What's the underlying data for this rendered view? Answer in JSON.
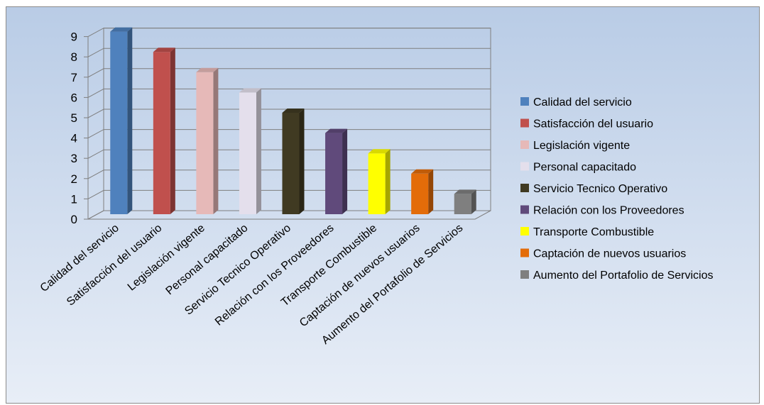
{
  "chart_data": {
    "type": "bar",
    "style": "3d-column",
    "title": "",
    "xlabel": "",
    "ylabel": "",
    "ylim": [
      0,
      9
    ],
    "yticks": [
      "0",
      "1",
      "2",
      "3",
      "4",
      "5",
      "6",
      "7",
      "8",
      "9"
    ],
    "grid": true,
    "legend_position": "right",
    "categories": [
      "Calidad del servicio",
      "Satisfacción del usuario",
      "Legislación vigente",
      "Personal capacitado",
      "Servicio Tecnico Operativo",
      "Relación con los Proveedores",
      "Transporte Combustible",
      "Captación de nuevos usuarios",
      "Aumento del Portafolio de Servicios"
    ],
    "values": [
      9,
      8,
      7,
      6,
      5,
      4,
      3,
      2,
      1
    ],
    "colors": [
      "#4f81bd",
      "#c0504d",
      "#e6b9b8",
      "#e4dfec",
      "#403a22",
      "#604a7b",
      "#ffff00",
      "#e36c09",
      "#7f7f7f"
    ],
    "legend": [
      "Calidad del servicio",
      "Satisfacción del usuario",
      "Legislación vigente",
      "Personal capacitado",
      "Servicio Tecnico Operativo",
      "Relación con los Proveedores",
      "Transporte Combustible",
      "Captación de nuevos usuarios",
      "Aumento del Portafolio de Servicios"
    ]
  }
}
